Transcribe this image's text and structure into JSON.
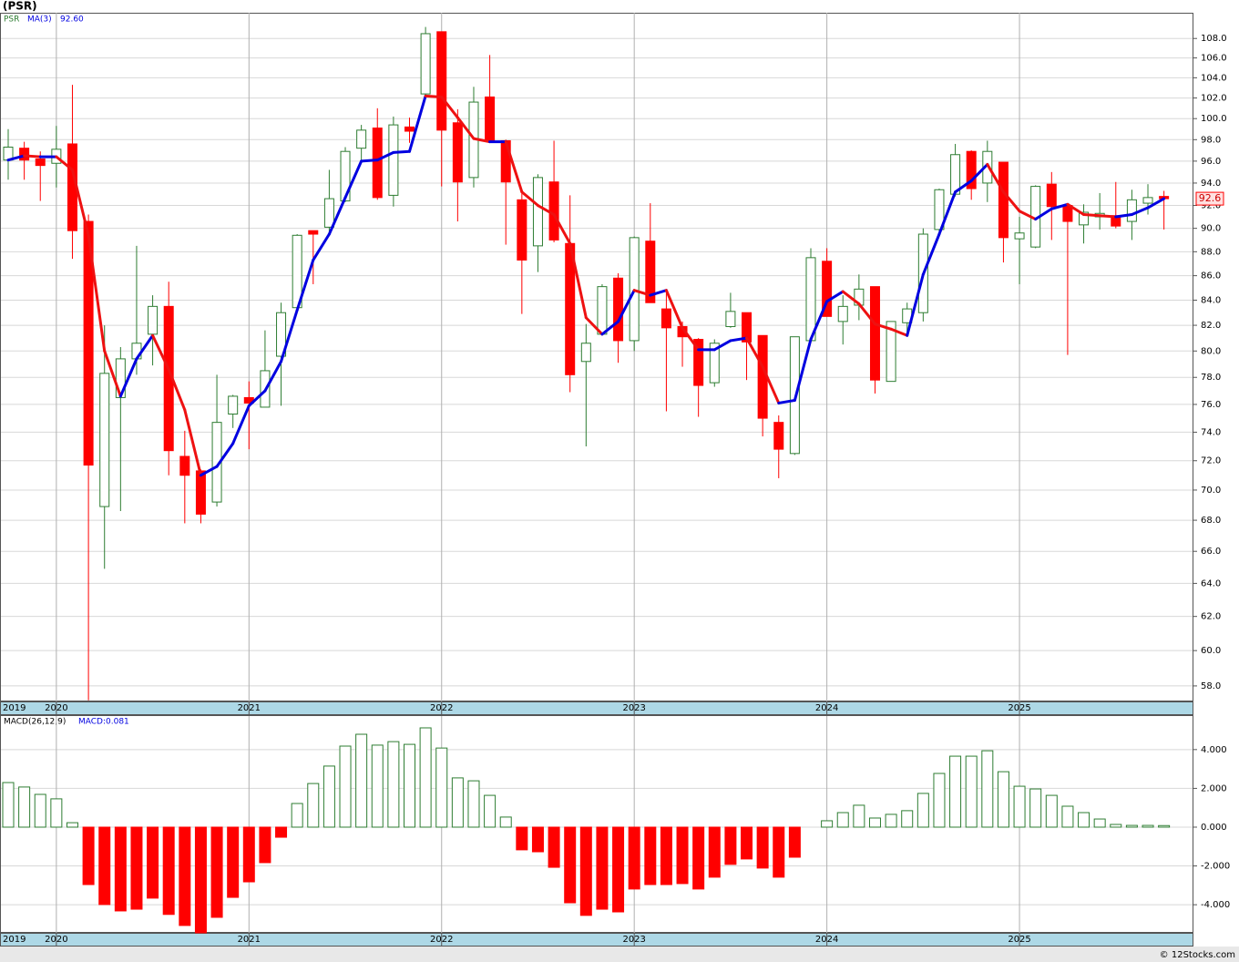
{
  "title": "(PSR)",
  "legend": {
    "symbol": "PSR",
    "ma_value": "92.60",
    "macd_name": "MACD(26,12,9)",
    "macd_value": "MACD:0.081"
  },
  "footer": "© 12Stocks.com",
  "chart_data": [
    {
      "type": "candlestick",
      "categories": [
        "2019",
        null,
        null,
        "2020",
        null,
        null,
        null,
        null,
        null,
        null,
        null,
        null,
        null,
        null,
        null,
        "2021",
        null,
        null,
        null,
        null,
        null,
        null,
        null,
        null,
        null,
        null,
        null,
        "2022",
        null,
        null,
        null,
        null,
        null,
        null,
        null,
        null,
        null,
        null,
        null,
        "2023",
        null,
        null,
        null,
        null,
        null,
        null,
        null,
        null,
        null,
        null,
        null,
        "2024",
        null,
        null,
        null,
        null,
        null,
        null,
        null,
        null,
        null,
        null,
        null,
        "2025",
        null,
        null,
        null,
        null,
        null,
        null,
        null,
        null,
        null
      ],
      "open": [
        96.1,
        97.2,
        96.2,
        95.8,
        97.6,
        90.6,
        68.9,
        76.5,
        79.4,
        81.3,
        83.5,
        72.3,
        71.3,
        69.2,
        75.3,
        76.5,
        75.8,
        79.6,
        83.4,
        89.8,
        90.1,
        92.4,
        97.2,
        99.1,
        92.9,
        99.2,
        102.4,
        108.7,
        99.6,
        94.5,
        102.1,
        97.9,
        92.5,
        88.5,
        94.1,
        88.7,
        79.2,
        81.3,
        85.8,
        80.8,
        88.9,
        83.3,
        81.9,
        80.9,
        77.6,
        81.9,
        83.0,
        81.2,
        74.7,
        72.5,
        80.8,
        87.2,
        82.3,
        83.6,
        85.1,
        77.7,
        82.2,
        83.0,
        89.9,
        93.0,
        96.9,
        94.0,
        95.9,
        89.1,
        88.4,
        93.9,
        92.0,
        90.3,
        91.0,
        91.1,
        90.6,
        92.2,
        92.8
      ],
      "high": [
        99.0,
        97.8,
        96.9,
        99.3,
        103.3,
        91.2,
        82.0,
        80.3,
        88.5,
        84.4,
        85.5,
        74.1,
        71.4,
        78.2,
        76.7,
        77.7,
        81.6,
        83.8,
        89.5,
        89.8,
        95.2,
        97.3,
        99.4,
        101.0,
        100.2,
        100.1,
        109.2,
        108.7,
        100.9,
        103.1,
        106.3,
        98.0,
        93.1,
        94.8,
        97.9,
        92.9,
        82.1,
        85.3,
        86.2,
        89.3,
        92.2,
        84.7,
        82.3,
        81.0,
        80.9,
        84.6,
        83.0,
        81.2,
        75.2,
        81.1,
        88.3,
        88.3,
        84.4,
        86.1,
        85.1,
        82.3,
        83.8,
        90.0,
        93.5,
        97.6,
        97.0,
        97.9,
        95.9,
        91.0,
        93.8,
        95.0,
        92.1,
        92.1,
        93.1,
        94.1,
        93.4,
        93.9,
        93.3
      ],
      "low": [
        94.3,
        94.3,
        92.4,
        93.6,
        87.4,
        57.2,
        64.9,
        68.6,
        78.2,
        78.9,
        71.0,
        67.8,
        67.8,
        68.9,
        74.3,
        72.8,
        75.8,
        75.9,
        83.3,
        85.3,
        89.5,
        92.3,
        96.0,
        92.5,
        91.9,
        97.7,
        102.2,
        93.7,
        90.6,
        93.6,
        97.9,
        88.6,
        82.9,
        86.3,
        88.8,
        76.9,
        73.0,
        81.2,
        79.1,
        80.0,
        83.8,
        75.5,
        78.8,
        75.1,
        77.3,
        81.8,
        77.8,
        73.7,
        70.8,
        72.4,
        80.7,
        82.7,
        80.5,
        82.4,
        76.8,
        77.7,
        81.4,
        82.3,
        89.7,
        92.8,
        92.5,
        92.3,
        87.1,
        85.3,
        88.3,
        89.0,
        79.7,
        88.7,
        89.9,
        90.0,
        89.0,
        91.2,
        89.9
      ],
      "close": [
        97.3,
        96.1,
        95.6,
        97.1,
        89.8,
        71.7,
        78.3,
        79.4,
        80.6,
        83.5,
        72.7,
        71.0,
        68.4,
        74.7,
        76.6,
        76.1,
        78.5,
        83.0,
        89.4,
        89.5,
        92.6,
        96.9,
        98.9,
        92.7,
        99.4,
        98.8,
        108.5,
        98.9,
        94.1,
        101.6,
        97.9,
        94.1,
        87.3,
        94.5,
        89.0,
        78.2,
        80.6,
        85.1,
        80.8,
        89.2,
        83.8,
        81.8,
        81.1,
        77.4,
        80.6,
        83.1,
        80.7,
        75.0,
        72.8,
        81.1,
        87.5,
        82.7,
        83.5,
        84.9,
        77.8,
        82.3,
        83.3,
        89.5,
        93.4,
        96.6,
        93.5,
        96.9,
        89.2,
        89.6,
        93.7,
        91.9,
        90.6,
        91.4,
        91.3,
        90.2,
        92.5,
        92.7,
        92.6
      ],
      "up_color": "#2e7d32",
      "down_color": "#ff0000",
      "series": [
        {
          "name": "MA(3)",
          "up_color": "#0000e0",
          "down_color": "#ee1111",
          "values": [
            96.1,
            96.5,
            96.4,
            96.4,
            95.2,
            89.4,
            80.0,
            76.6,
            79.4,
            81.2,
            78.6,
            75.6,
            71.0,
            71.6,
            73.2,
            75.9,
            77.0,
            79.2,
            83.2,
            87.3,
            89.5,
            92.7,
            96.0,
            96.1,
            96.8,
            96.9,
            102.2,
            102.1,
            100.1,
            98.1,
            97.8,
            97.8,
            93.2,
            92.0,
            91.2,
            88.7,
            82.6,
            81.3,
            82.3,
            84.8,
            84.4,
            84.8,
            81.8,
            80.1,
            80.1,
            80.8,
            81.0,
            78.8,
            76.1,
            76.3,
            80.9,
            83.9,
            84.7,
            83.7,
            82.1,
            81.7,
            81.2,
            86.1,
            89.5,
            93.2,
            94.2,
            95.7,
            93.2,
            91.5,
            90.8,
            91.7,
            92.1,
            91.2,
            91.1,
            91.0,
            91.2,
            91.8,
            92.6
          ]
        }
      ],
      "price_tag": "92.6",
      "log": true,
      "grid": true,
      "ylim": [
        57.14,
        110.7
      ],
      "yticks": [
        {
          "value": 58,
          "label": "58.0"
        },
        {
          "value": 60,
          "label": "60.0"
        },
        {
          "value": 62,
          "label": "62.0"
        },
        {
          "value": 64,
          "label": "64.0"
        },
        {
          "value": 66,
          "label": "66.0"
        },
        {
          "value": 68,
          "label": "68.0"
        },
        {
          "value": 70,
          "label": "70.0"
        },
        {
          "value": 72,
          "label": "72.0"
        },
        {
          "value": 74,
          "label": "74.0"
        },
        {
          "value": 76,
          "label": "76.0"
        },
        {
          "value": 78,
          "label": "78.0"
        },
        {
          "value": 80,
          "label": "80.0"
        },
        {
          "value": 82,
          "label": "82.0"
        },
        {
          "value": 84,
          "label": "84.0"
        },
        {
          "value": 86,
          "label": "86.0"
        },
        {
          "value": 88,
          "label": "88.0"
        },
        {
          "value": 90,
          "label": "90.0"
        },
        {
          "value": 92,
          "label": "92.0"
        },
        {
          "value": 94,
          "label": "94.0"
        },
        {
          "value": 96,
          "label": "96.0"
        },
        {
          "value": 98,
          "label": "98.0"
        },
        {
          "value": 100,
          "label": "100.0"
        },
        {
          "value": 102,
          "label": "102.0"
        },
        {
          "value": 104,
          "label": "104.0"
        },
        {
          "value": 106,
          "label": "106.0"
        },
        {
          "value": 108,
          "label": "108.0"
        }
      ]
    },
    {
      "type": "bar",
      "categories": [
        "2019",
        null,
        null,
        "2020",
        null,
        null,
        null,
        null,
        null,
        null,
        null,
        null,
        null,
        null,
        null,
        "2021",
        null,
        null,
        null,
        null,
        null,
        null,
        null,
        null,
        null,
        null,
        null,
        "2022",
        null,
        null,
        null,
        null,
        null,
        null,
        null,
        null,
        null,
        null,
        null,
        "2023",
        null,
        null,
        null,
        null,
        null,
        null,
        null,
        null,
        null,
        null,
        null,
        "2024",
        null,
        null,
        null,
        null,
        null,
        null,
        null,
        null,
        null,
        null,
        null,
        "2025",
        null,
        null,
        null,
        null,
        null,
        null,
        null,
        null,
        null
      ],
      "values": [
        2.3,
        2.07,
        1.69,
        1.46,
        0.23,
        -2.96,
        -3.99,
        -4.32,
        -4.23,
        -3.66,
        -4.5,
        -5.07,
        -5.45,
        -4.65,
        -3.62,
        -2.82,
        -1.83,
        -0.52,
        1.22,
        2.25,
        3.15,
        4.18,
        4.79,
        4.23,
        4.41,
        4.27,
        5.12,
        4.08,
        2.54,
        2.39,
        1.64,
        0.52,
        -1.17,
        -1.27,
        -2.07,
        -3.9,
        -4.55,
        -4.23,
        -4.37,
        -3.19,
        -2.96,
        -2.96,
        -2.91,
        -3.19,
        -2.58,
        -1.92,
        -1.64,
        -2.11,
        -2.58,
        -1.55,
        0.0,
        0.33,
        0.75,
        1.13,
        0.47,
        0.66,
        0.85,
        1.74,
        2.77,
        3.66,
        3.66,
        3.94,
        2.86,
        2.11,
        1.97,
        1.64,
        1.08,
        0.75,
        0.42,
        0.14,
        0.09,
        0.09,
        0.081
      ],
      "up_color": "#2e7d32",
      "down_color": "#ff0000",
      "grid": true,
      "ylim": [
        -5.45,
        5.73
      ],
      "yticks": [
        {
          "value": -4,
          "label": "-4.000"
        },
        {
          "value": -2,
          "label": "-2.000"
        },
        {
          "value": 0,
          "label": "0.000"
        },
        {
          "value": 2,
          "label": "2.000"
        },
        {
          "value": 4,
          "label": "4.000"
        }
      ]
    }
  ]
}
